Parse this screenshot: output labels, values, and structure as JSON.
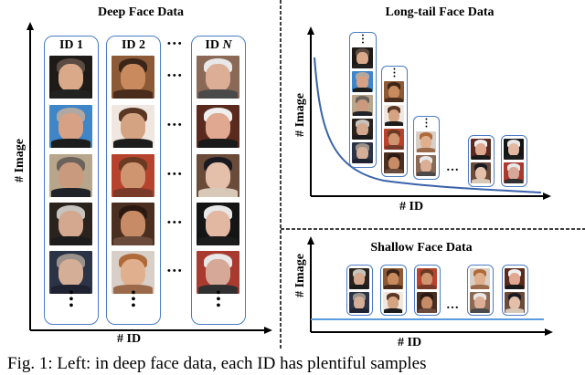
{
  "left_panel": {
    "title": "Deep Face Data",
    "y_axis_label": "# Image",
    "x_axis_label": "# ID",
    "ellipsis": "•••",
    "vertical_ellipsis": "•",
    "columns": [
      {
        "label": "ID 1",
        "faces": [
          {
            "bg": "#1e1a18",
            "skin": "#d9a98a",
            "hair": "#5a4a40",
            "body": "#222222"
          },
          {
            "bg": "#3f86c8",
            "skin": "#d6a184",
            "hair": "#b0a8a2",
            "body": "#1d1d1d"
          },
          {
            "bg": "#b8a68c",
            "skin": "#c99a7e",
            "hair": "#6b625c",
            "body": "#20242a"
          },
          {
            "bg": "#2a221c",
            "skin": "#d4a88e",
            "hair": "#c7c3bf",
            "body": "#1c1c1c"
          },
          {
            "bg": "#2b3346",
            "skin": "#d5ae97",
            "hair": "#9a928a",
            "body": "#1f2230"
          }
        ]
      },
      {
        "label": "ID 2",
        "faces": [
          {
            "bg": "#8c5a36",
            "skin": "#c98a5e",
            "hair": "#3b2418",
            "body": "#4a2c1c"
          },
          {
            "bg": "#efe7e0",
            "skin": "#d4a381",
            "hair": "#5a3624",
            "body": "#1c1c1c"
          },
          {
            "bg": "#b7432e",
            "skin": "#cf9470",
            "hair": "#6b3a22",
            "body": "#7a3a2a"
          },
          {
            "bg": "#4a2e20",
            "skin": "#c78c66",
            "hair": "#2a1a12",
            "body": "#6a4a3a"
          },
          {
            "bg": "#d8d0c8",
            "skin": "#e0b08e",
            "hair": "#b06a3a",
            "body": "#9a6a4a"
          }
        ]
      },
      {
        "label": "ID N",
        "label_prefix": "ID ",
        "label_italic": "N",
        "faces": [
          {
            "bg": "#8a6a56",
            "skin": "#dcae96",
            "hair": "#e8e8e8",
            "body": "#4a4a4a"
          },
          {
            "bg": "#5a2a1e",
            "skin": "#e0a890",
            "hair": "#efefef",
            "body": "#1a1a1a"
          },
          {
            "bg": "#6a4a38",
            "skin": "#e4c0aa",
            "hair": "#1a1a22",
            "body": "#d8c8b8"
          },
          {
            "bg": "#141414",
            "skin": "#e2b8a2",
            "hair": "#e8e8e8",
            "body": "#1c1c1c"
          },
          {
            "bg": "#a83a30",
            "skin": "#d6a898",
            "hair": "#e8e8e8",
            "body": "#303030"
          }
        ]
      }
    ]
  },
  "long_tail_panel": {
    "title": "Long-tail Face Data",
    "y_axis_label": "# Image",
    "x_axis_label": "# ID",
    "ellipsis": "…",
    "curve_color": "#3a62aa"
  },
  "shallow_panel": {
    "title": "Shallow Face Data",
    "y_axis_label": "# Image",
    "x_axis_label": "# ID",
    "ellipsis": "…",
    "line_color": "#5b9be0"
  },
  "colors": {
    "box_border": "#4a7cc4",
    "axis": "#000000",
    "divider": "#000000"
  },
  "caption": {
    "text": "Fig. 1: Left: in deep face data, each ID has plentiful samples"
  }
}
